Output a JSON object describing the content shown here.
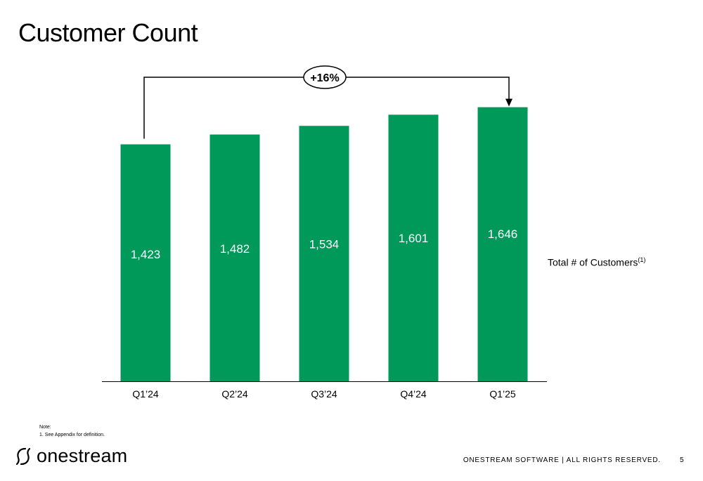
{
  "slide": {
    "title": "Customer Count",
    "series_label": "Total # of Customers",
    "series_label_sup": "(1)",
    "note_heading": "Note:",
    "note_item": "1.  See Appendix for definition.",
    "logo_text": "onestream",
    "footer": "ONESTREAM SOFTWARE  |  ALL RIGHTS RESERVED.",
    "page_number": "5"
  },
  "colors": {
    "bar": "#00995a",
    "bar_label": "#ffffff",
    "text": "#000000"
  },
  "chart_data": {
    "type": "bar",
    "categories": [
      "Q1’24",
      "Q2’24",
      "Q3’24",
      "Q4’24",
      "Q1’25"
    ],
    "values": [
      1423,
      1482,
      1534,
      1601,
      1646
    ],
    "data_labels": [
      "1,423",
      "1,482",
      "1,534",
      "1,601",
      "1,646"
    ],
    "annotation": {
      "text": "+16%",
      "from": "Q1’24",
      "to": "Q1’25"
    },
    "ylim": [
      0,
      1750
    ],
    "grid": false,
    "y_axis_visible": false
  }
}
